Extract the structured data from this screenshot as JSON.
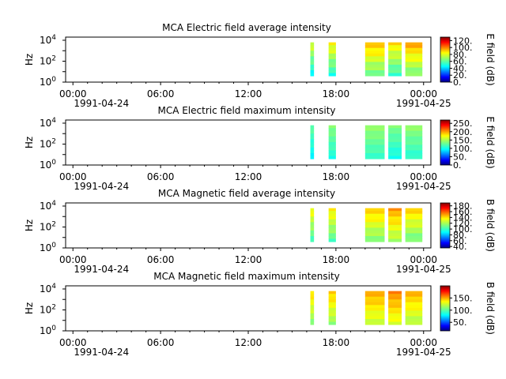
{
  "figure": {
    "time_ticks": [
      "00:00",
      "06:00",
      "12:00",
      "18:00",
      "00:00"
    ],
    "date_labels": [
      "1991-04-24",
      "1991-04-25"
    ],
    "ylabel": "Hz"
  },
  "chart_data": [
    {
      "type": "heatmap",
      "title": "MCA  Electric field average intensity",
      "ylabel": "Hz",
      "yscale": "log",
      "yticks": [
        "10^0",
        "10^2",
        "10^4"
      ],
      "ylim_log10": [
        0,
        4.3
      ],
      "xlim_hours": [
        -0.5,
        24.5
      ],
      "colorbar": {
        "label": "E field (dB)",
        "ticks": [
          "0.",
          "20.",
          "40.",
          "60.",
          "80.",
          "100.",
          "120."
        ],
        "tick_values": [
          0,
          20,
          40,
          60,
          80,
          100,
          120
        ],
        "range": [
          0,
          130
        ]
      },
      "segments": [
        {
          "start": "16:15",
          "end": "16:30",
          "level": 55
        },
        {
          "start": "17:30",
          "end": "18:00",
          "level": 60
        },
        {
          "start": "20:00",
          "end": "21:20",
          "level": 68
        },
        {
          "start": "21:35",
          "end": "22:30",
          "level": 62
        },
        {
          "start": "22:45",
          "end": "23:55",
          "level": 70
        }
      ]
    },
    {
      "type": "heatmap",
      "title": "MCA  Electric field maximum intensity",
      "ylabel": "Hz",
      "yscale": "log",
      "yticks": [
        "10^0",
        "10^2",
        "10^4"
      ],
      "ylim_log10": [
        0,
        4.3
      ],
      "xlim_hours": [
        -0.5,
        24.5
      ],
      "colorbar": {
        "label": "E field (dB)",
        "ticks": [
          "0.",
          "50.",
          "100.",
          "150.",
          "200.",
          "250."
        ],
        "tick_values": [
          0,
          50,
          100,
          150,
          200,
          250
        ],
        "range": [
          0,
          270
        ]
      },
      "segments": [
        {
          "start": "16:15",
          "end": "16:30",
          "level": 105
        },
        {
          "start": "17:30",
          "end": "18:00",
          "level": 115
        },
        {
          "start": "20:00",
          "end": "21:20",
          "level": 120
        },
        {
          "start": "21:35",
          "end": "22:30",
          "level": 112
        },
        {
          "start": "22:45",
          "end": "23:55",
          "level": 118
        }
      ]
    },
    {
      "type": "heatmap",
      "title": "MCA  Magnetic field average intensity",
      "ylabel": "Hz",
      "yscale": "log",
      "yticks": [
        "10^0",
        "10^2",
        "10^4"
      ],
      "ylim_log10": [
        0,
        4.3
      ],
      "xlim_hours": [
        -0.5,
        24.5
      ],
      "colorbar": {
        "label": "B field (dB)",
        "ticks": [
          "40.",
          "60.",
          "80.",
          "100.",
          "120.",
          "140.",
          "160.",
          "180."
        ],
        "tick_values": [
          40,
          60,
          80,
          100,
          120,
          140,
          160,
          180
        ],
        "range": [
          35,
          190
        ]
      },
      "segments": [
        {
          "start": "16:15",
          "end": "16:30",
          "level": 110
        },
        {
          "start": "17:30",
          "end": "18:00",
          "level": 112
        },
        {
          "start": "20:00",
          "end": "21:20",
          "level": 118
        },
        {
          "start": "21:35",
          "end": "22:30",
          "level": 124
        },
        {
          "start": "22:45",
          "end": "23:55",
          "level": 116
        }
      ]
    },
    {
      "type": "heatmap",
      "title": "MCA  Magnetic field maximum intensity",
      "ylabel": "Hz",
      "yscale": "log",
      "yticks": [
        "10^0",
        "10^2",
        "10^4"
      ],
      "ylim_log10": [
        0,
        4.3
      ],
      "xlim_hours": [
        -0.5,
        24.5
      ],
      "colorbar": {
        "label": "B field (dB)",
        "ticks": [
          "50.",
          "100.",
          "150."
        ],
        "tick_values": [
          50,
          100,
          150
        ],
        "range": [
          15,
          200
        ]
      },
      "segments": [
        {
          "start": "16:15",
          "end": "16:30",
          "level": 115
        },
        {
          "start": "17:30",
          "end": "18:00",
          "level": 118
        },
        {
          "start": "20:00",
          "end": "21:20",
          "level": 125
        },
        {
          "start": "21:35",
          "end": "22:30",
          "level": 130
        },
        {
          "start": "22:45",
          "end": "23:55",
          "level": 122
        }
      ]
    }
  ]
}
